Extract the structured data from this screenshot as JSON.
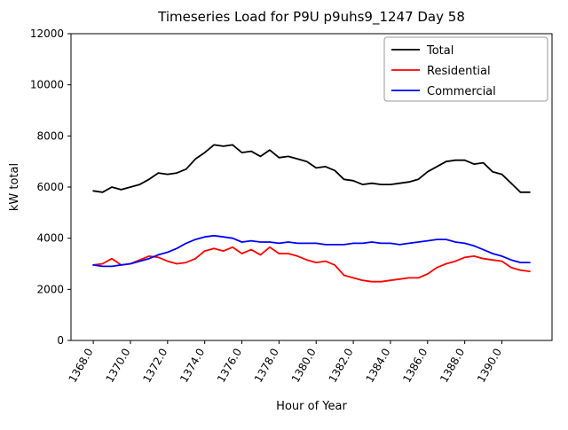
{
  "figure": {
    "title": "Timeseries Load for P9U p9uhs9_1247  Day 58",
    "xlabel": "Hour of Year",
    "ylabel": "kW total"
  },
  "chart_data": {
    "type": "line",
    "title": "Timeseries Load for P9U p9uhs9_1247  Day 58",
    "xlabel": "Hour of Year",
    "ylabel": "kW total",
    "xlim": [
      1366.8,
      1392.7
    ],
    "ylim": [
      0,
      12000
    ],
    "grid": false,
    "legend_position": "upper right",
    "yticks": [
      0,
      2000,
      4000,
      6000,
      8000,
      10000,
      12000
    ],
    "ytick_labels": [
      "0",
      "2000",
      "4000",
      "6000",
      "8000",
      "10000",
      "12000"
    ],
    "xticks": [
      1368,
      1370,
      1372,
      1374,
      1376,
      1378,
      1380,
      1382,
      1384,
      1386,
      1388,
      1390
    ],
    "xtick_labels": [
      "1368.0",
      "1370.0",
      "1372.0",
      "1374.0",
      "1376.0",
      "1378.0",
      "1380.0",
      "1382.0",
      "1384.0",
      "1386.0",
      "1388.0",
      "1390.0"
    ],
    "x": [
      1368,
      1368.5,
      1369,
      1369.5,
      1370,
      1370.5,
      1371,
      1371.5,
      1372,
      1372.5,
      1373,
      1373.5,
      1374,
      1374.5,
      1375,
      1375.5,
      1376,
      1376.5,
      1377,
      1377.5,
      1378,
      1378.5,
      1379,
      1379.5,
      1380,
      1380.5,
      1381,
      1381.5,
      1382,
      1382.5,
      1383,
      1383.5,
      1384,
      1384.5,
      1385,
      1385.5,
      1386,
      1386.5,
      1387,
      1387.5,
      1388,
      1388.5,
      1389,
      1389.5,
      1390,
      1390.5,
      1391,
      1391.5
    ],
    "series": [
      {
        "name": "Total",
        "color": "#000000",
        "values": [
          5850,
          5800,
          6000,
          5900,
          6000,
          6100,
          6300,
          6550,
          6500,
          6550,
          6700,
          7100,
          7350,
          7650,
          7600,
          7650,
          7350,
          7400,
          7200,
          7450,
          7150,
          7200,
          7100,
          7000,
          6750,
          6800,
          6650,
          6300,
          6250,
          6100,
          6150,
          6100,
          6100,
          6150,
          6200,
          6300,
          6600,
          6800,
          7000,
          7050,
          7050,
          6900,
          6950,
          6600,
          6500,
          6150,
          5800,
          5800
        ]
      },
      {
        "name": "Residential",
        "color": "#ff0000",
        "values": [
          2950,
          3000,
          3200,
          2950,
          3000,
          3150,
          3300,
          3250,
          3100,
          3000,
          3050,
          3200,
          3500,
          3600,
          3500,
          3650,
          3400,
          3550,
          3350,
          3650,
          3400,
          3400,
          3300,
          3150,
          3050,
          3100,
          2950,
          2550,
          2450,
          2350,
          2300,
          2300,
          2350,
          2400,
          2450,
          2450,
          2600,
          2850,
          3000,
          3100,
          3250,
          3300,
          3200,
          3150,
          3100,
          2850,
          2750,
          2700
        ]
      },
      {
        "name": "Commercial",
        "color": "#0000ff",
        "values": [
          2950,
          2900,
          2900,
          2950,
          3000,
          3100,
          3200,
          3350,
          3450,
          3600,
          3800,
          3950,
          4050,
          4100,
          4050,
          4000,
          3850,
          3900,
          3850,
          3850,
          3800,
          3850,
          3800,
          3800,
          3800,
          3750,
          3750,
          3750,
          3800,
          3800,
          3850,
          3800,
          3800,
          3750,
          3800,
          3850,
          3900,
          3950,
          3950,
          3850,
          3800,
          3700,
          3550,
          3400,
          3300,
          3150,
          3050,
          3050
        ]
      }
    ]
  }
}
